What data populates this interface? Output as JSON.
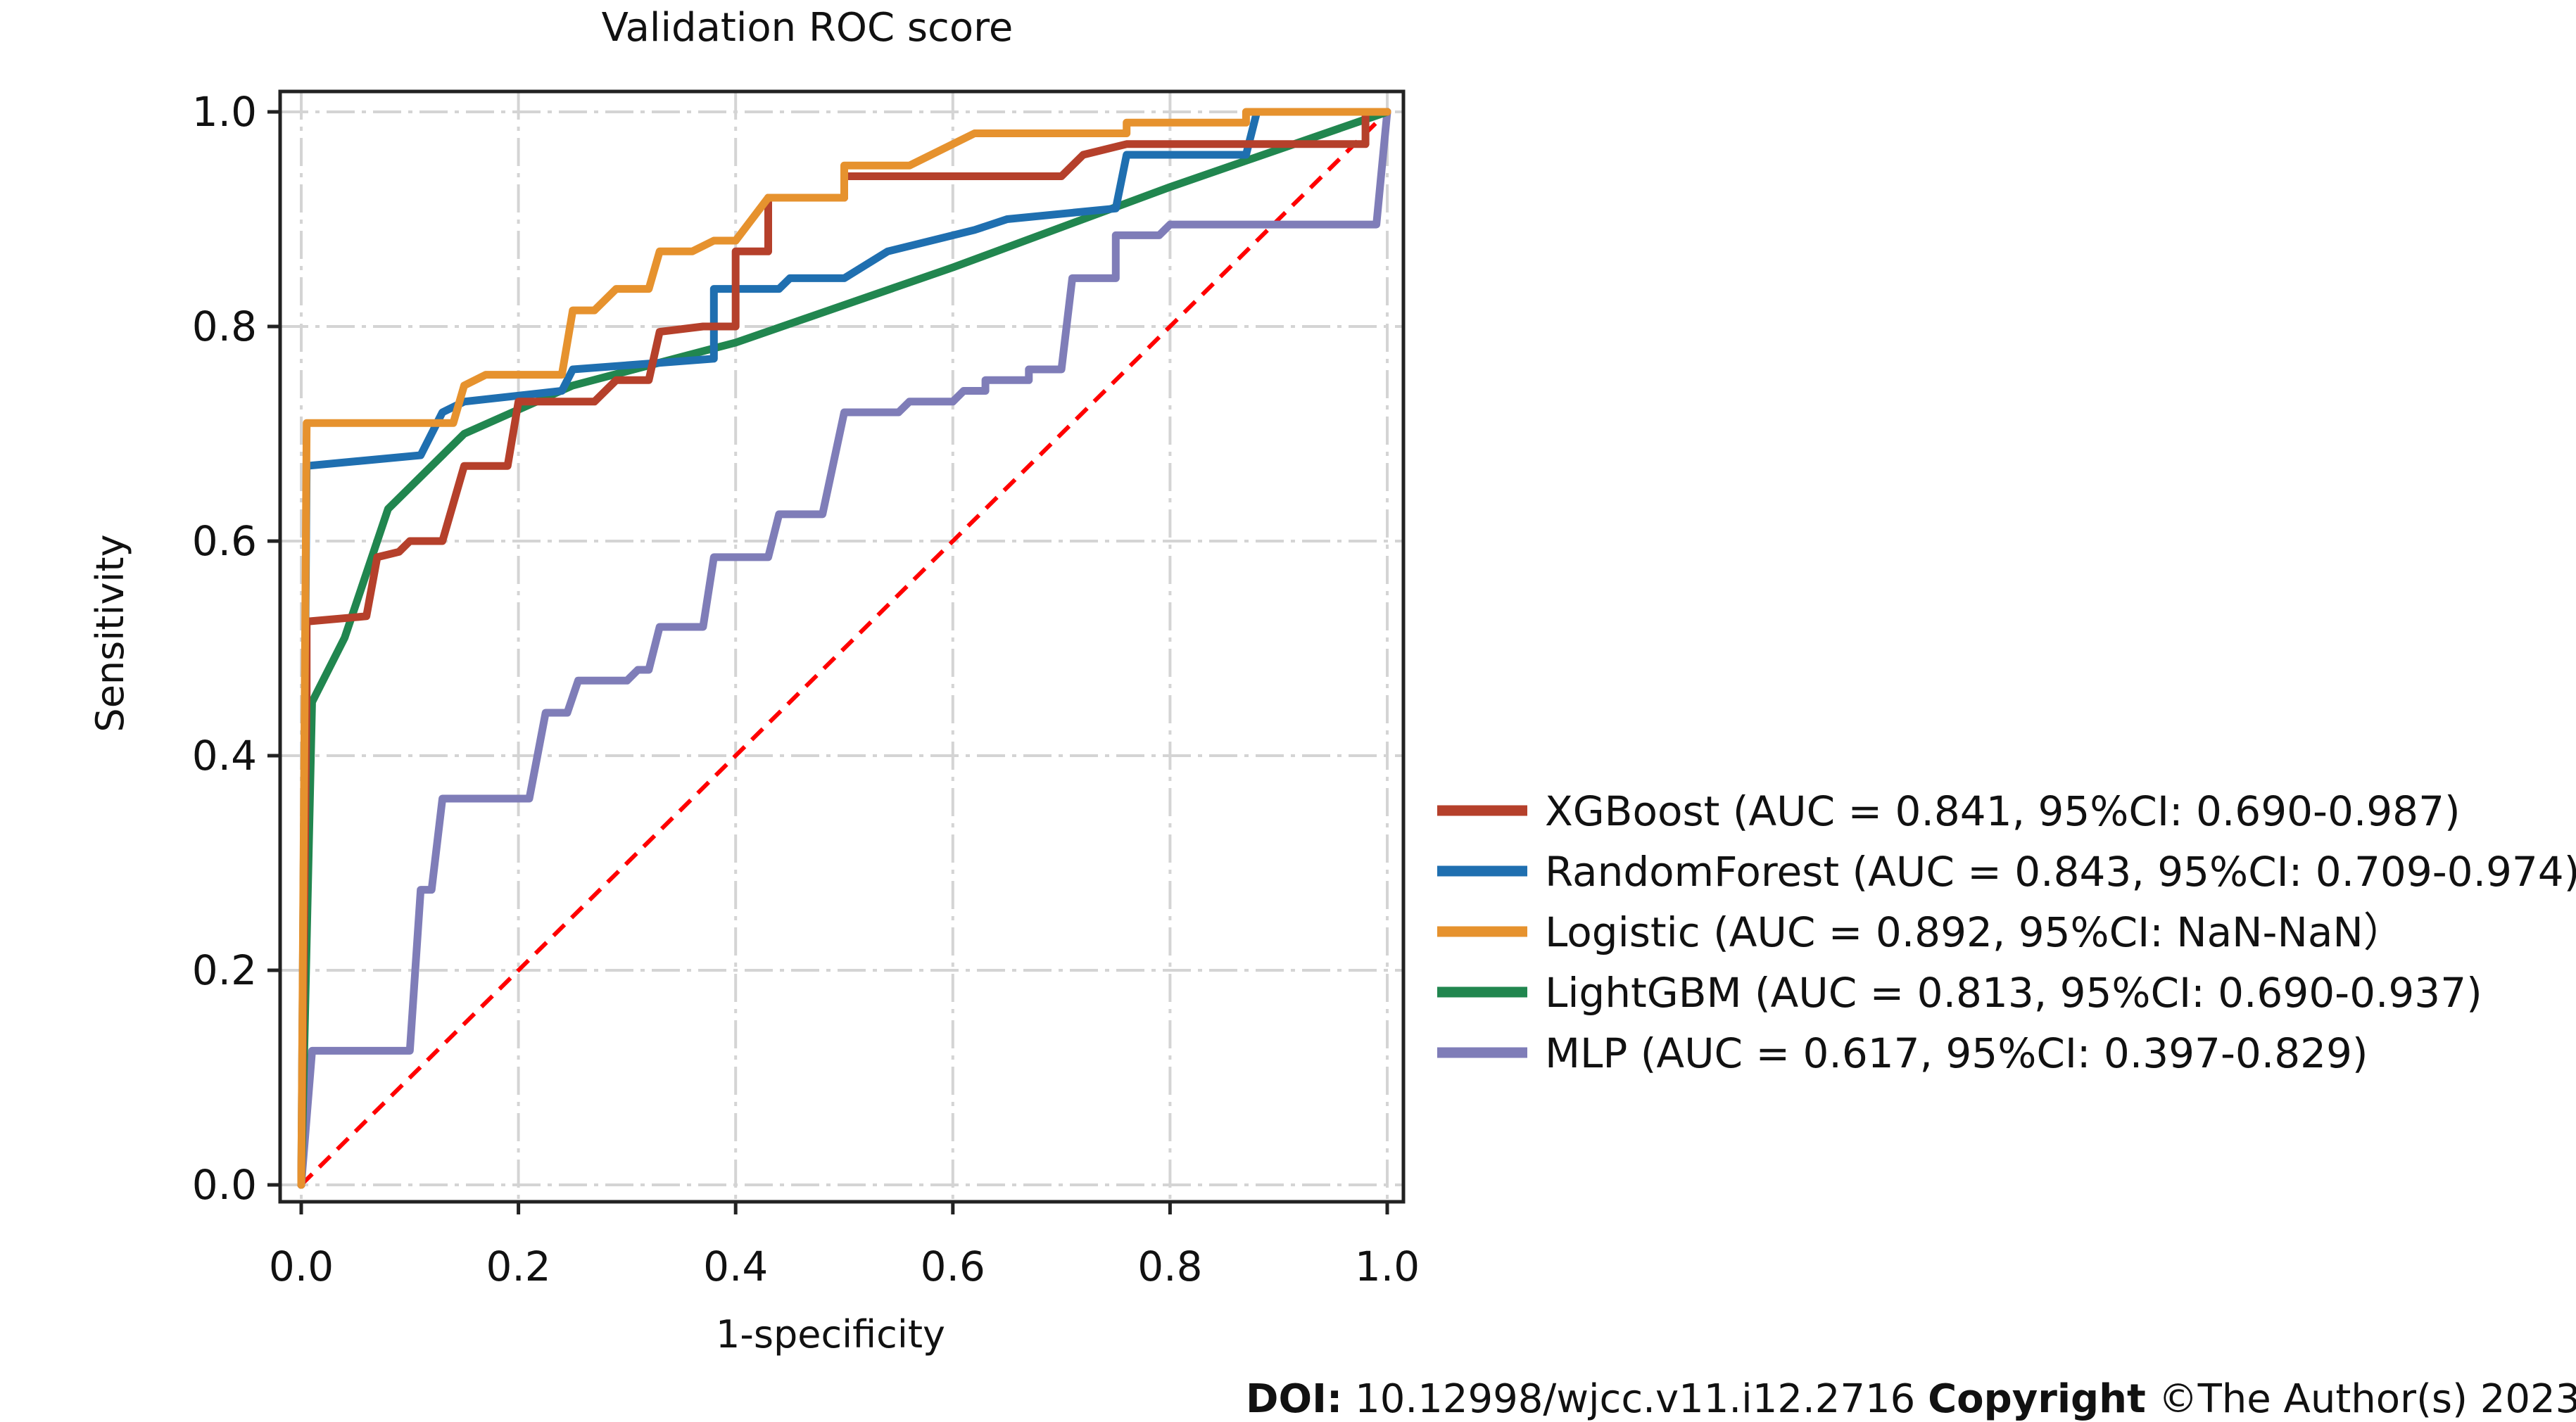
{
  "chart_data": {
    "type": "line",
    "title": "Validation ROC score",
    "xlabel": "1-specificity",
    "ylabel": "Sensitivity",
    "xlim": [
      0,
      1
    ],
    "ylim": [
      0,
      1
    ],
    "xticks": [
      "0.0",
      "0.2",
      "0.4",
      "0.6",
      "0.8",
      "1.0"
    ],
    "yticks": [
      "0.0",
      "0.2",
      "0.4",
      "0.6",
      "0.8",
      "1.0"
    ],
    "grid": true,
    "legend_position": "right",
    "series": [
      {
        "name": "XGBoost (AUC = 0.841, 95%CI: 0.690-0.987)",
        "color": "#b5402b",
        "points": [
          [
            0,
            0
          ],
          [
            0.005,
            0.46
          ],
          [
            0.005,
            0.525
          ],
          [
            0.06,
            0.53
          ],
          [
            0.07,
            0.585
          ],
          [
            0.09,
            0.59
          ],
          [
            0.1,
            0.6
          ],
          [
            0.13,
            0.6
          ],
          [
            0.15,
            0.67
          ],
          [
            0.19,
            0.67
          ],
          [
            0.2,
            0.73
          ],
          [
            0.27,
            0.73
          ],
          [
            0.29,
            0.75
          ],
          [
            0.32,
            0.75
          ],
          [
            0.33,
            0.795
          ],
          [
            0.37,
            0.8
          ],
          [
            0.4,
            0.8
          ],
          [
            0.4,
            0.87
          ],
          [
            0.43,
            0.87
          ],
          [
            0.43,
            0.92
          ],
          [
            0.5,
            0.92
          ],
          [
            0.5,
            0.94
          ],
          [
            0.7,
            0.94
          ],
          [
            0.72,
            0.96
          ],
          [
            0.76,
            0.97
          ],
          [
            0.98,
            0.97
          ],
          [
            0.98,
            1.0
          ],
          [
            1.0,
            1.0
          ]
        ]
      },
      {
        "name": "RandomForest (AUC = 0.843, 95%CI: 0.709-0.974)",
        "color": "#1f6fb0",
        "points": [
          [
            0,
            0
          ],
          [
            0.005,
            0.67
          ],
          [
            0.11,
            0.68
          ],
          [
            0.13,
            0.72
          ],
          [
            0.15,
            0.73
          ],
          [
            0.24,
            0.74
          ],
          [
            0.25,
            0.76
          ],
          [
            0.38,
            0.77
          ],
          [
            0.38,
            0.835
          ],
          [
            0.44,
            0.835
          ],
          [
            0.45,
            0.845
          ],
          [
            0.5,
            0.845
          ],
          [
            0.54,
            0.87
          ],
          [
            0.62,
            0.89
          ],
          [
            0.65,
            0.9
          ],
          [
            0.75,
            0.91
          ],
          [
            0.76,
            0.96
          ],
          [
            0.87,
            0.96
          ],
          [
            0.88,
            1.0
          ],
          [
            1.0,
            1.0
          ]
        ]
      },
      {
        "name": "Logistic (AUC = 0.892, 95%CI: NaN-NaN）",
        "color": "#e6922e",
        "points": [
          [
            0,
            0
          ],
          [
            0.005,
            0.71
          ],
          [
            0.14,
            0.71
          ],
          [
            0.15,
            0.745
          ],
          [
            0.17,
            0.755
          ],
          [
            0.24,
            0.755
          ],
          [
            0.25,
            0.815
          ],
          [
            0.27,
            0.815
          ],
          [
            0.29,
            0.835
          ],
          [
            0.32,
            0.835
          ],
          [
            0.33,
            0.87
          ],
          [
            0.36,
            0.87
          ],
          [
            0.38,
            0.88
          ],
          [
            0.4,
            0.88
          ],
          [
            0.43,
            0.92
          ],
          [
            0.5,
            0.92
          ],
          [
            0.5,
            0.95
          ],
          [
            0.56,
            0.95
          ],
          [
            0.62,
            0.98
          ],
          [
            0.76,
            0.98
          ],
          [
            0.76,
            0.99
          ],
          [
            0.87,
            0.99
          ],
          [
            0.87,
            1.0
          ],
          [
            1.0,
            1.0
          ]
        ]
      },
      {
        "name": "LightGBM (AUC = 0.813, 95%CI: 0.690-0.937)",
        "color": "#21864f",
        "points": [
          [
            0,
            0
          ],
          [
            0.01,
            0.45
          ],
          [
            0.04,
            0.51
          ],
          [
            0.08,
            0.63
          ],
          [
            0.15,
            0.7
          ],
          [
            0.25,
            0.745
          ],
          [
            0.4,
            0.785
          ],
          [
            0.6,
            0.855
          ],
          [
            0.8,
            0.93
          ],
          [
            1.0,
            1.0
          ]
        ]
      },
      {
        "name": "MLP (AUC = 0.617, 95%CI: 0.397-0.829)",
        "color": "#7f7db8",
        "points": [
          [
            0,
            0
          ],
          [
            0.01,
            0.125
          ],
          [
            0.1,
            0.125
          ],
          [
            0.11,
            0.275
          ],
          [
            0.12,
            0.275
          ],
          [
            0.13,
            0.36
          ],
          [
            0.21,
            0.36
          ],
          [
            0.225,
            0.44
          ],
          [
            0.245,
            0.44
          ],
          [
            0.255,
            0.47
          ],
          [
            0.3,
            0.47
          ],
          [
            0.31,
            0.48
          ],
          [
            0.32,
            0.48
          ],
          [
            0.33,
            0.52
          ],
          [
            0.37,
            0.52
          ],
          [
            0.38,
            0.585
          ],
          [
            0.43,
            0.585
          ],
          [
            0.44,
            0.625
          ],
          [
            0.48,
            0.625
          ],
          [
            0.5,
            0.72
          ],
          [
            0.55,
            0.72
          ],
          [
            0.56,
            0.73
          ],
          [
            0.6,
            0.73
          ],
          [
            0.61,
            0.74
          ],
          [
            0.63,
            0.74
          ],
          [
            0.63,
            0.75
          ],
          [
            0.67,
            0.75
          ],
          [
            0.67,
            0.76
          ],
          [
            0.7,
            0.76
          ],
          [
            0.71,
            0.845
          ],
          [
            0.75,
            0.845
          ],
          [
            0.75,
            0.885
          ],
          [
            0.79,
            0.885
          ],
          [
            0.8,
            0.895
          ],
          [
            0.99,
            0.895
          ],
          [
            1.0,
            1.0
          ]
        ]
      }
    ],
    "reference_line": {
      "color": "#ff0000",
      "points": [
        [
          0,
          0
        ],
        [
          1,
          1
        ]
      ]
    }
  },
  "footer": {
    "doi_label": "DOI:",
    "doi_value": " 10.12998/wjcc.v11.i12.2716 ",
    "copyright_label": "Copyright",
    "copyright_value": " ©The Author(s) 2023."
  }
}
